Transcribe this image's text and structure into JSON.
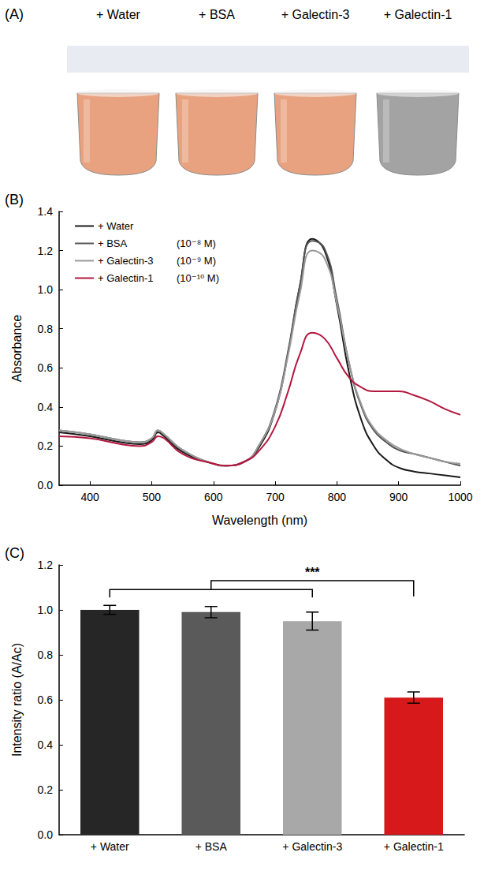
{
  "photo": {
    "panel": "(A)",
    "labels": [
      "+ Water",
      "+ BSA",
      "+ Galectin-3",
      "+ Galectin-1"
    ],
    "colors": [
      "#e9a27f",
      "#e9a27f",
      "#e9a27f",
      "#a3a3a3"
    ]
  },
  "chart_data": [
    {
      "panel": "(B)",
      "type": "line",
      "x_label": "Wavelength (nm)",
      "y_label": "Absorbance",
      "x": [
        350,
        400,
        450,
        480,
        500,
        510,
        520,
        550,
        600,
        620,
        650,
        675,
        700,
        720,
        740,
        760,
        780,
        800,
        820,
        840,
        860,
        880,
        900,
        925,
        950,
        975,
        1000
      ],
      "series": [
        {
          "name": "+ Water",
          "color": "#1a1a1a",
          "values": [
            0.27,
            0.25,
            0.22,
            0.21,
            0.23,
            0.27,
            0.25,
            0.17,
            0.11,
            0.1,
            0.12,
            0.2,
            0.38,
            0.66,
            1.02,
            1.26,
            1.2,
            0.92,
            0.57,
            0.33,
            0.2,
            0.13,
            0.09,
            0.07,
            0.06,
            0.05,
            0.04
          ]
        },
        {
          "name": "+ BSA",
          "concentration": "(10⁻⁸ M)",
          "color": "#555555",
          "values": [
            0.28,
            0.26,
            0.23,
            0.22,
            0.24,
            0.28,
            0.26,
            0.18,
            0.11,
            0.1,
            0.12,
            0.21,
            0.39,
            0.67,
            1.02,
            1.25,
            1.21,
            0.95,
            0.62,
            0.4,
            0.28,
            0.22,
            0.18,
            0.16,
            0.14,
            0.12,
            0.1
          ]
        },
        {
          "name": "+ Galectin-3",
          "concentration": "(10⁻⁹ M)",
          "color": "#9a9a9a",
          "values": [
            0.28,
            0.26,
            0.23,
            0.22,
            0.24,
            0.28,
            0.26,
            0.18,
            0.11,
            0.1,
            0.12,
            0.21,
            0.38,
            0.65,
            0.98,
            1.2,
            1.16,
            0.93,
            0.62,
            0.41,
            0.29,
            0.23,
            0.19,
            0.16,
            0.14,
            0.12,
            0.11
          ]
        },
        {
          "name": "+ Galectin-1",
          "concentration": "(10⁻¹⁰ M)",
          "color": "#b5163f",
          "values": [
            0.25,
            0.24,
            0.21,
            0.2,
            0.22,
            0.25,
            0.24,
            0.16,
            0.11,
            0.1,
            0.12,
            0.18,
            0.3,
            0.47,
            0.67,
            0.78,
            0.75,
            0.65,
            0.55,
            0.5,
            0.48,
            0.48,
            0.48,
            0.46,
            0.43,
            0.39,
            0.36
          ]
        }
      ],
      "xlim": [
        350,
        1000
      ],
      "xticks": [
        400,
        500,
        600,
        700,
        800,
        900,
        1000
      ],
      "ylim": [
        0,
        1.4
      ],
      "yticks": [
        {
          "value": 0,
          "label": "0.0"
        },
        0.2,
        0.4,
        0.6,
        0.8,
        {
          "value": 1,
          "label": "1.0"
        },
        1.2,
        1.4
      ],
      "grid": false,
      "legend": "upper left"
    },
    {
      "panel": "(C)",
      "type": "bar",
      "y_label": "Intensity ratio (A/Ac)",
      "categories": [
        "+ Water",
        "+ BSA",
        "+ Galectin-3",
        "+ Galectin-1"
      ],
      "values": [
        1.0,
        0.99,
        0.95,
        0.61
      ],
      "errors": [
        0.02,
        0.025,
        0.04,
        0.025
      ],
      "colors": [
        "#262626",
        "#5a5a5a",
        "#a8a8a8",
        "#d7191c"
      ],
      "ylim": [
        0,
        1.2
      ],
      "yticks": [
        {
          "value": 0,
          "label": "0.0"
        },
        0.2,
        0.4,
        0.6,
        0.8,
        {
          "value": 1,
          "label": "1.0"
        },
        1.2
      ],
      "significance": {
        "label": "***",
        "group": [
          "+ Water",
          "+ Galectin-3"
        ],
        "group_y": 1.09,
        "versus": "+ Galectin-1",
        "y": 1.13
      },
      "grid": false
    }
  ]
}
